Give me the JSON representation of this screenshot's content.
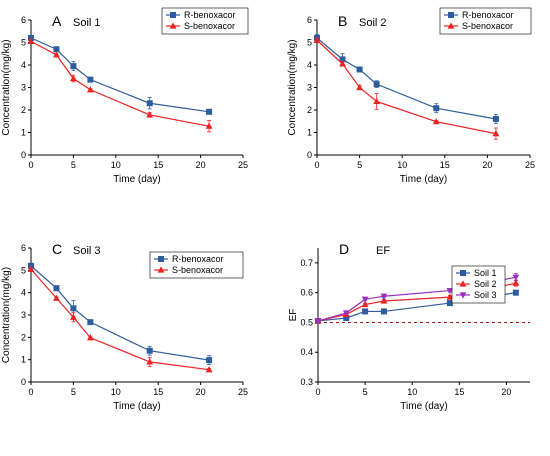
{
  "chart_data": [
    {
      "type": "line",
      "panel_letter": "A",
      "title": "Soil 1",
      "xlabel": "Time (day)",
      "ylabel": "Concentration(mg/kg)",
      "xlim": [
        0,
        25
      ],
      "ylim": [
        0,
        6
      ],
      "xticks": [
        "0",
        "5",
        "10",
        "15",
        "20",
        "25"
      ],
      "yticks": [
        "0",
        "1",
        "2",
        "3",
        "4",
        "5",
        "6"
      ],
      "legend_position": "top-right",
      "x": [
        0,
        3,
        5,
        7,
        14,
        21
      ],
      "series": [
        {
          "name": "R-benoxacor",
          "color": "#2e5d9f",
          "marker": "square",
          "values": [
            5.2,
            4.7,
            3.95,
            3.35,
            2.3,
            1.92
          ],
          "errors": [
            0.1,
            0.1,
            0.2,
            0.05,
            0.25,
            0.05
          ]
        },
        {
          "name": "S-benoxacor",
          "color": "#ee2222",
          "marker": "triangle-up",
          "values": [
            5.05,
            4.45,
            3.4,
            2.9,
            1.78,
            1.28
          ],
          "errors": [
            0.1,
            0.05,
            0.15,
            0.05,
            0.1,
            0.25
          ]
        }
      ]
    },
    {
      "type": "line",
      "panel_letter": "B",
      "title": "Soil 2",
      "xlabel": "Time (day)",
      "ylabel": "Concentration(mg/kg)",
      "xlim": [
        0,
        25
      ],
      "ylim": [
        0,
        6
      ],
      "xticks": [
        "0",
        "5",
        "10",
        "15",
        "20",
        "25"
      ],
      "yticks": [
        "0",
        "1",
        "2",
        "3",
        "4",
        "5",
        "6"
      ],
      "legend_position": "top-right",
      "x": [
        0,
        3,
        5,
        7,
        14,
        21
      ],
      "series": [
        {
          "name": "R-benoxacor",
          "color": "#2e5d9f",
          "marker": "square",
          "values": [
            5.2,
            4.25,
            3.8,
            3.15,
            2.08,
            1.6
          ],
          "errors": [
            0.15,
            0.25,
            0.05,
            0.15,
            0.2,
            0.2
          ]
        },
        {
          "name": "S-benoxacor",
          "color": "#ee2222",
          "marker": "triangle-up",
          "values": [
            5.1,
            4.05,
            3.0,
            2.38,
            1.48,
            0.95
          ],
          "errors": [
            0.1,
            0.1,
            0.1,
            0.35,
            0.05,
            0.25
          ]
        }
      ]
    },
    {
      "type": "line",
      "panel_letter": "C",
      "title": "Soil 3",
      "xlabel": "Time (day)",
      "ylabel": "Concentration(mg/kg)",
      "xlim": [
        0,
        25
      ],
      "ylim": [
        0,
        6
      ],
      "xticks": [
        "0",
        "5",
        "10",
        "15",
        "20",
        "25"
      ],
      "yticks": [
        "0",
        "1",
        "2",
        "3",
        "4",
        "5",
        "6"
      ],
      "legend_position": "top-right",
      "x": [
        0,
        3,
        5,
        7,
        14,
        21
      ],
      "series": [
        {
          "name": "R-benoxacor",
          "color": "#2e5d9f",
          "marker": "square",
          "values": [
            5.2,
            4.2,
            3.3,
            2.68,
            1.4,
            0.98
          ],
          "errors": [
            0.1,
            0.05,
            0.35,
            0.05,
            0.2,
            0.2
          ]
        },
        {
          "name": "S-benoxacor",
          "color": "#ee2222",
          "marker": "triangle-up",
          "values": [
            5.05,
            3.75,
            2.9,
            1.98,
            0.9,
            0.55
          ],
          "errors": [
            0.1,
            0.05,
            0.2,
            0.05,
            0.2,
            0.05
          ]
        }
      ]
    },
    {
      "type": "line",
      "panel_letter": "D",
      "title": "EF",
      "xlabel": "Time (day)",
      "ylabel": "EF",
      "xlim": [
        0,
        22.5
      ],
      "ylim": [
        0.3,
        0.75
      ],
      "xticks": [
        "0",
        "5",
        "10",
        "15",
        "20"
      ],
      "ytick_values": [
        0.3,
        0.4,
        0.5,
        0.6,
        0.7
      ],
      "yticks": [
        "0.3",
        "0.4",
        "0.5",
        "0.6",
        "0.7"
      ],
      "legend_position": "top-right",
      "reference_line": {
        "y": 0.5,
        "style": "dashed",
        "color": "#a0141e"
      },
      "x": [
        0,
        3,
        5,
        7,
        14,
        21
      ],
      "series": [
        {
          "name": "Soil 1",
          "color": "#2e5d9f",
          "marker": "square",
          "values": [
            0.505,
            0.515,
            0.537,
            0.537,
            0.565,
            0.6
          ],
          "errors": [
            0.005,
            0.005,
            0.005,
            0.003,
            0.005,
            0.005
          ]
        },
        {
          "name": "Soil 2",
          "color": "#ee2222",
          "marker": "triangle-up",
          "values": [
            0.505,
            0.527,
            0.56,
            0.572,
            0.585,
            0.632
          ],
          "errors": [
            0.005,
            0.005,
            0.005,
            0.005,
            0.005,
            0.01
          ]
        },
        {
          "name": "Soil 3",
          "color": "#9b30c0",
          "marker": "triangle-down",
          "values": [
            0.505,
            0.532,
            0.578,
            0.588,
            0.607,
            0.652
          ],
          "errors": [
            0.005,
            0.005,
            0.005,
            0.005,
            0.005,
            0.012
          ]
        }
      ]
    }
  ]
}
